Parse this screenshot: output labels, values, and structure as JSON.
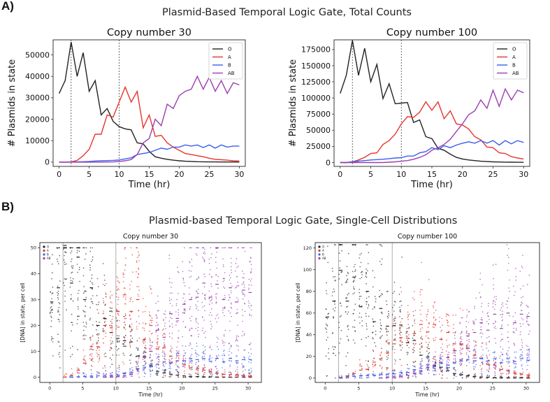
{
  "labels": {
    "a": "A)",
    "b": "B)"
  },
  "titles": {
    "top": "Plasmid-Based Temporal Logic Gate, Total Counts",
    "bottom": "Plasmid-based Temporal Logic Gate, Single-Cell Distributions"
  },
  "colors": {
    "O": "#222222",
    "A": "#e8342e",
    "B": "#3a5ef0",
    "AB": "#9b3fb0"
  },
  "chart_data": [
    {
      "type": "line",
      "title": "Copy number 30",
      "xlabel": "Time (hr)",
      "ylabel": "# Plasmids in state",
      "xlim": [
        -1,
        31
      ],
      "ylim": [
        -2000,
        57000
      ],
      "xticks": [
        0,
        5,
        10,
        15,
        20,
        25,
        30
      ],
      "yticks": [
        0,
        10000,
        20000,
        30000,
        40000,
        50000
      ],
      "vlines": [
        2,
        10
      ],
      "legend": "top-right",
      "x": [
        0,
        1,
        2,
        3,
        4,
        5,
        6,
        7,
        8,
        9,
        10,
        11,
        12,
        13,
        14,
        15,
        16,
        17,
        18,
        19,
        20,
        21,
        22,
        23,
        24,
        25,
        26,
        27,
        28,
        29,
        30
      ],
      "series": [
        {
          "name": "O",
          "values": [
            32000,
            38000,
            56000,
            40000,
            51000,
            33000,
            38000,
            22000,
            25000,
            19000,
            16500,
            15500,
            15000,
            9000,
            8500,
            5000,
            2500,
            1800,
            1300,
            900,
            600,
            400,
            300,
            200,
            150,
            100,
            80,
            60,
            50,
            40,
            30
          ]
        },
        {
          "name": "A",
          "values": [
            0,
            0,
            100,
            800,
            3000,
            6000,
            13000,
            13000,
            22000,
            21000,
            28000,
            35000,
            28000,
            33000,
            16000,
            22000,
            12000,
            12500,
            9000,
            7000,
            5500,
            4000,
            3500,
            3000,
            2500,
            1800,
            1300,
            1100,
            900,
            600,
            500
          ]
        },
        {
          "name": "B",
          "values": [
            0,
            0,
            0,
            100,
            200,
            300,
            500,
            600,
            700,
            800,
            1000,
            1500,
            2000,
            3500,
            4000,
            4500,
            5500,
            6500,
            6000,
            7000,
            7000,
            8000,
            7500,
            8000,
            6800,
            8000,
            6500,
            8000,
            7000,
            7500,
            7500
          ]
        },
        {
          "name": "AB",
          "values": [
            0,
            0,
            0,
            0,
            0,
            0,
            0,
            0,
            50,
            100,
            300,
            600,
            1200,
            3500,
            9000,
            11000,
            20000,
            17000,
            27000,
            25000,
            31000,
            33000,
            34000,
            40000,
            34000,
            39500,
            33000,
            38000,
            32000,
            37000,
            36000
          ]
        }
      ]
    },
    {
      "type": "line",
      "title": "Copy number 100",
      "xlabel": "Time (hr)",
      "ylabel": "# Plasmids in state",
      "xlim": [
        -1,
        31
      ],
      "ylim": [
        -6000,
        190000
      ],
      "xticks": [
        0,
        5,
        10,
        15,
        20,
        25,
        30
      ],
      "yticks": [
        0,
        25000,
        50000,
        75000,
        100000,
        125000,
        150000,
        175000
      ],
      "vlines": [
        2,
        10
      ],
      "legend": "top-right",
      "x": [
        0,
        1,
        2,
        3,
        4,
        5,
        6,
        7,
        8,
        9,
        10,
        11,
        12,
        13,
        14,
        15,
        16,
        17,
        18,
        19,
        20,
        21,
        22,
        23,
        24,
        25,
        26,
        27,
        28,
        29,
        30
      ],
      "series": [
        {
          "name": "O",
          "values": [
            107000,
            135000,
            189000,
            135000,
            177000,
            125000,
            152000,
            99000,
            122000,
            91000,
            92000,
            93000,
            62000,
            66000,
            40000,
            37000,
            22000,
            19000,
            13000,
            8000,
            5500,
            4000,
            3000,
            2000,
            1500,
            1000,
            800,
            600,
            500,
            400,
            300
          ]
        },
        {
          "name": "A",
          "values": [
            0,
            0,
            1000,
            4000,
            8000,
            14000,
            15000,
            28000,
            34000,
            44000,
            60000,
            71000,
            70000,
            78000,
            94000,
            81000,
            94000,
            68000,
            80000,
            60000,
            58000,
            52000,
            40000,
            35000,
            24000,
            23000,
            15000,
            14000,
            9000,
            7000,
            5500
          ]
        },
        {
          "name": "B",
          "values": [
            0,
            0,
            1000,
            2000,
            3000,
            4000,
            4500,
            5000,
            6000,
            7000,
            7500,
            10000,
            10000,
            15000,
            17000,
            23000,
            20000,
            26000,
            23000,
            27000,
            30000,
            32000,
            30000,
            34000,
            30000,
            34000,
            27000,
            34000,
            29000,
            34000,
            31000
          ]
        },
        {
          "name": "AB",
          "values": [
            0,
            0,
            0,
            0,
            0,
            0,
            0,
            0,
            500,
            1000,
            2000,
            3000,
            5000,
            8000,
            12000,
            19000,
            23000,
            28000,
            36000,
            48000,
            60000,
            74000,
            80000,
            97000,
            84000,
            112000,
            87000,
            114000,
            97000,
            112000,
            108000
          ]
        }
      ]
    },
    {
      "type": "scatter",
      "title": "Copy number 30",
      "xlabel": "Time (hr)",
      "ylabel": "[DNA] in state, per cell",
      "xlim": [
        -1.5,
        32
      ],
      "ylim": [
        -2,
        52
      ],
      "xticks": [
        0,
        5,
        10,
        15,
        20,
        25,
        30
      ],
      "yticks": [
        0,
        10,
        20,
        30,
        40,
        50
      ],
      "vlines": [
        2,
        10
      ],
      "legend": "top-left",
      "legend_labels": [
        "O",
        "A",
        "B",
        "AB"
      ]
    },
    {
      "type": "scatter",
      "title": "Copy number 100",
      "xlabel": "Time (hr)",
      "ylabel": "[DNA] in state, per cell",
      "xlim": [
        -1.5,
        32
      ],
      "ylim": [
        -4,
        125
      ],
      "xticks": [
        0,
        5,
        10,
        15,
        20,
        25,
        30
      ],
      "yticks": [
        0,
        20,
        40,
        60,
        80,
        100,
        120
      ],
      "vlines": [
        2,
        10
      ],
      "legend": "top-left",
      "legend_labels": [
        "O",
        "A",
        "B",
        "AB"
      ]
    }
  ]
}
